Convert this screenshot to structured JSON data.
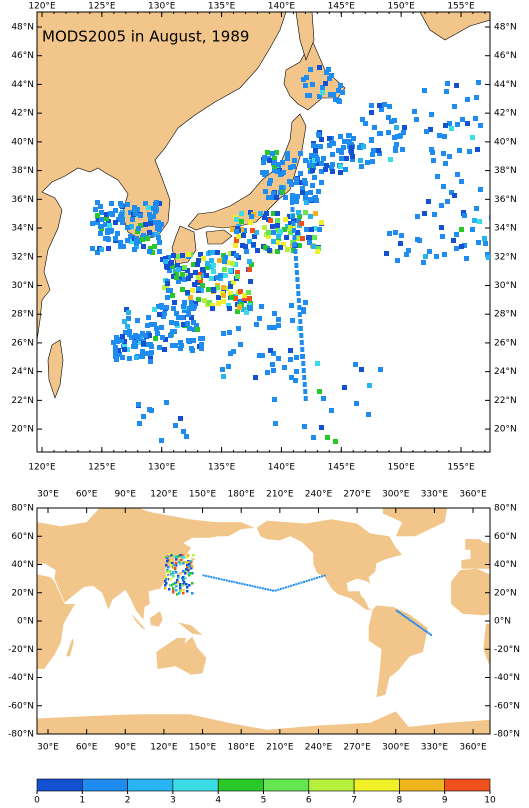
{
  "top_map": {
    "title": "MODS2005 in August, 1989",
    "lon_labels": [
      "120°E",
      "125°E",
      "130°E",
      "135°E",
      "140°E",
      "145°E",
      "150°E",
      "155°E"
    ],
    "lat_labels": [
      "48°N",
      "46°N",
      "44°N",
      "42°N",
      "40°N",
      "38°N",
      "36°N",
      "34°N",
      "32°N",
      "30°N",
      "28°N",
      "26°N",
      "24°N",
      "22°N",
      "20°N"
    ]
  },
  "bottom_map": {
    "lon_labels": [
      "30°E",
      "60°E",
      "90°E",
      "120°E",
      "150°E",
      "180°E",
      "210°E",
      "240°E",
      "270°E",
      "300°E",
      "330°E",
      "360°E"
    ],
    "lat_labels": [
      "80°N",
      "60°N",
      "40°N",
      "20°N",
      "0°N",
      "-20°N",
      "-40°N",
      "-60°N",
      "-80°N"
    ]
  },
  "colorbar": {
    "labels": [
      "0",
      "1",
      "2",
      "3",
      "4",
      "5",
      "6",
      "7",
      "8",
      "9",
      "10"
    ],
    "colors": [
      "#1450d2",
      "#1e8cf0",
      "#28b4f0",
      "#3cdce6",
      "#28c828",
      "#64e650",
      "#b4f03c",
      "#f0f028",
      "#f0b41e",
      "#f0501e"
    ]
  }
}
